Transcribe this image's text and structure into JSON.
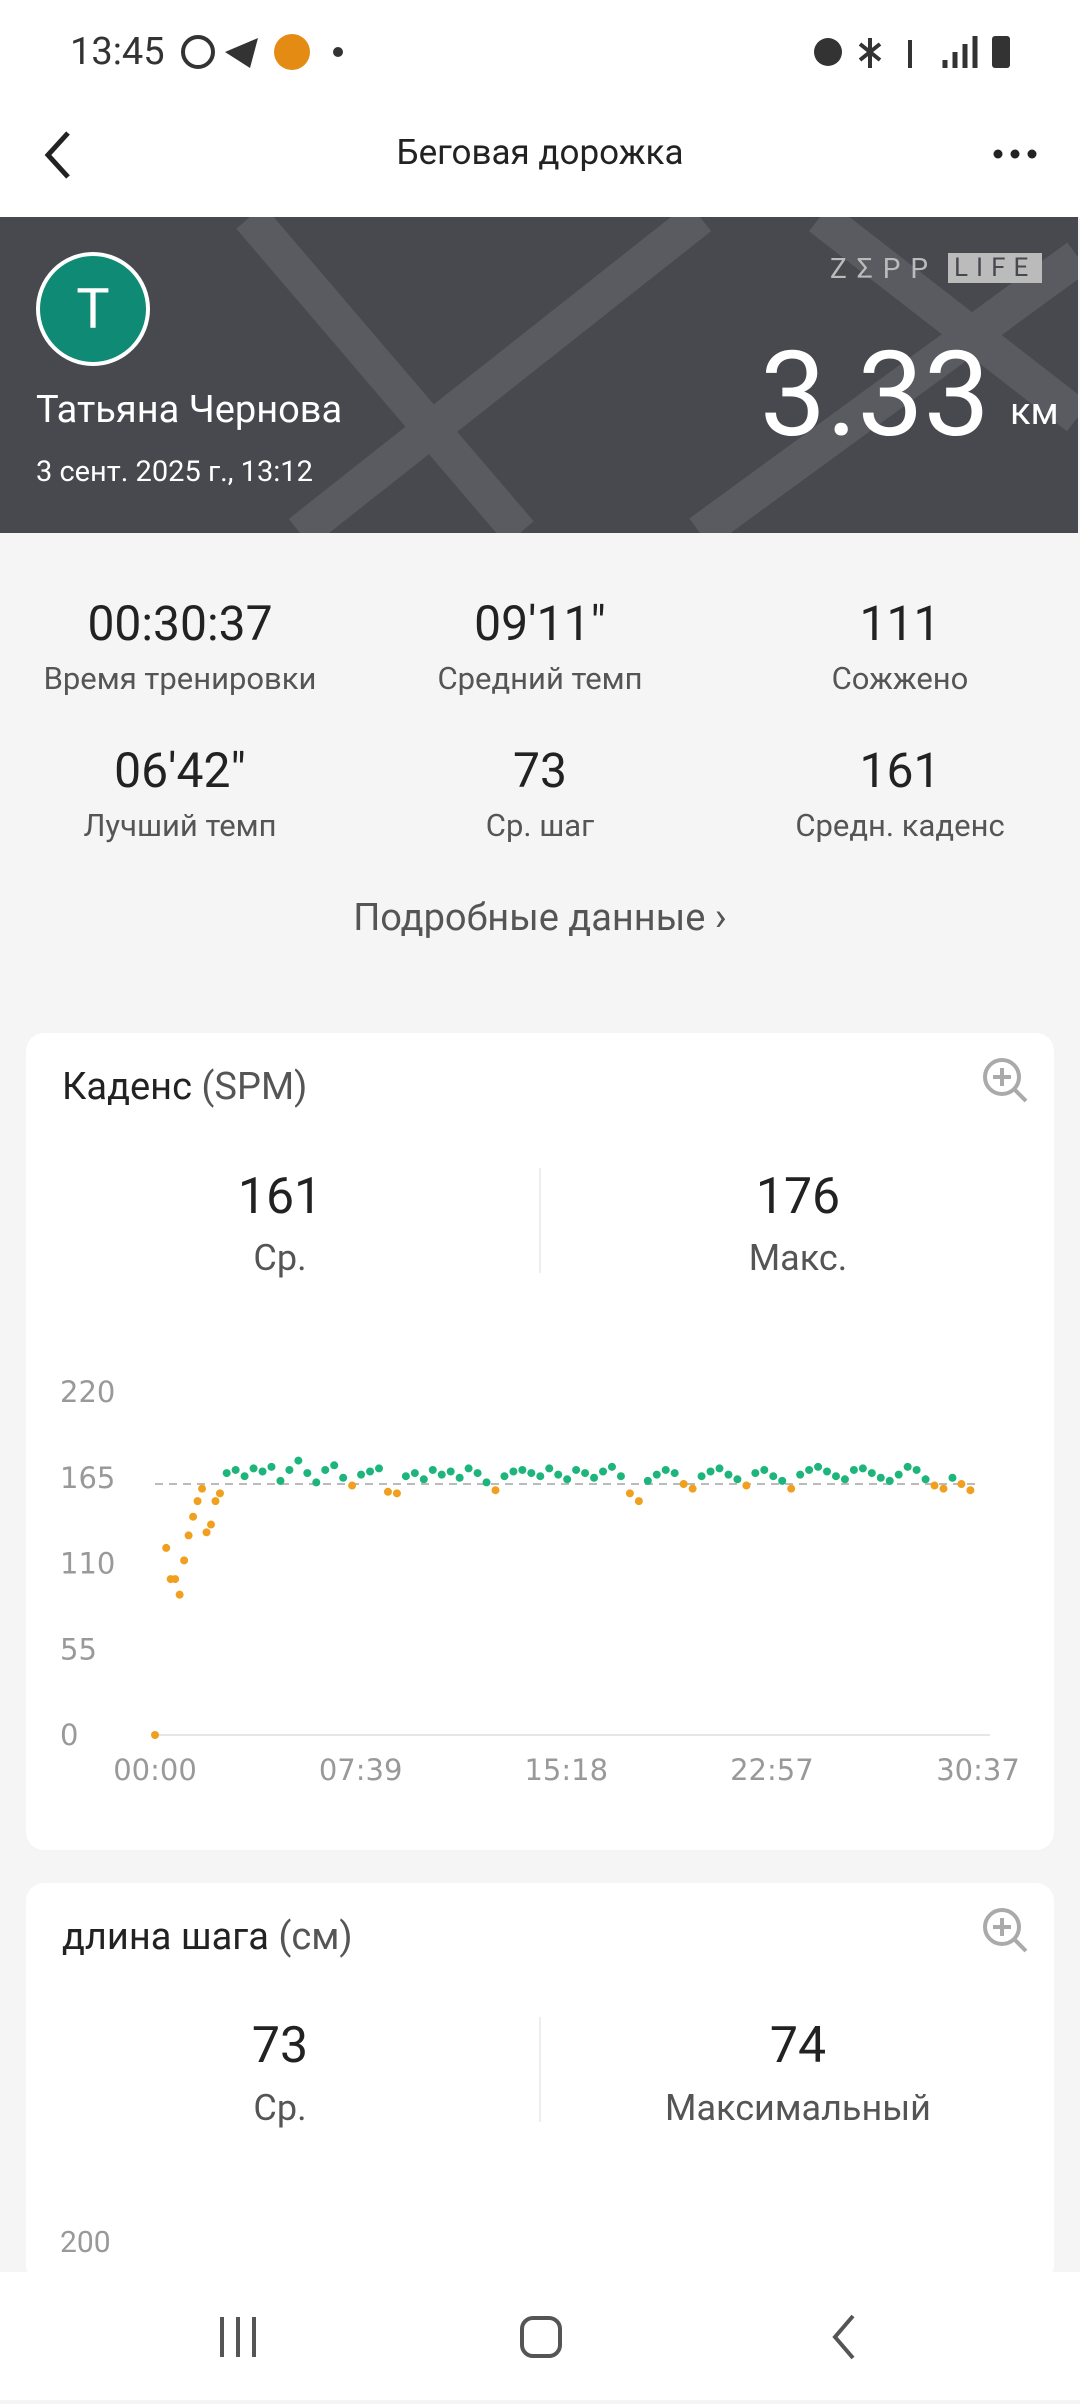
{
  "status_bar": {
    "time": "13:45"
  },
  "header": {
    "title": "Беговая дорожка"
  },
  "profile": {
    "avatar_letter": "T",
    "name": "Татьяна Чернова",
    "date": "3 сент. 2025 г., 13:12",
    "brand": "ZΣPP",
    "brand_badge": "LIFE",
    "distance": "3.33",
    "unit": "км"
  },
  "stats": [
    {
      "value": "00:30:37",
      "label": "Время тренировки"
    },
    {
      "value": "09'11\"",
      "label": "Средний темп"
    },
    {
      "value": "111",
      "label": "Сожжено"
    },
    {
      "value": "06'42\"",
      "label": "Лучший темп"
    },
    {
      "value": "73",
      "label": "Ср. шаг"
    },
    {
      "value": "161",
      "label": "Средн. каденс"
    }
  ],
  "details_link": "Подробные данные",
  "cadence": {
    "title": "Каденс",
    "unit": "(SPM)",
    "avg": {
      "value": 161,
      "label": "Ср."
    },
    "max": {
      "value": 176,
      "label": "Макс."
    },
    "chart": {
      "type": "scatter",
      "color_above": "#1db57b",
      "color_below": "#f0a01e",
      "x": [
        0,
        25,
        35,
        45,
        55,
        65,
        75,
        85,
        95,
        105,
        115,
        125,
        135,
        145,
        160,
        180,
        200,
        220,
        240,
        260,
        280,
        300,
        320,
        340,
        360,
        380,
        400,
        420,
        440,
        460,
        480,
        500,
        520,
        540,
        560,
        580,
        600,
        620,
        640,
        660,
        680,
        700,
        720,
        740,
        760,
        780,
        800,
        820,
        840,
        860,
        880,
        900,
        920,
        940,
        960,
        980,
        1000,
        1020,
        1040,
        1060,
        1080,
        1100,
        1120,
        1140,
        1160,
        1180,
        1200,
        1220,
        1240,
        1260,
        1280,
        1300,
        1320,
        1340,
        1360,
        1380,
        1400,
        1420,
        1440,
        1460,
        1480,
        1500,
        1520,
        1540,
        1560,
        1580,
        1600,
        1620,
        1640,
        1660,
        1680,
        1700,
        1720,
        1740,
        1760,
        1780,
        1800,
        1820
      ],
      "values": [
        0,
        120,
        100,
        100,
        90,
        112,
        128,
        140,
        150,
        158,
        130,
        135,
        150,
        155,
        168,
        170,
        166,
        171,
        169,
        172,
        163,
        170,
        176,
        168,
        162,
        170,
        173,
        165,
        160,
        167,
        169,
        171,
        156,
        155,
        166,
        168,
        164,
        170,
        167,
        169,
        165,
        171,
        168,
        162,
        157,
        166,
        169,
        170,
        168,
        166,
        171,
        167,
        164,
        170,
        168,
        165,
        169,
        172,
        166,
        155,
        150,
        163,
        167,
        170,
        168,
        161,
        158,
        166,
        169,
        171,
        167,
        164,
        160,
        168,
        170,
        166,
        163,
        158,
        167,
        170,
        172,
        169,
        166,
        164,
        170,
        171,
        168,
        165,
        163,
        167,
        172,
        170,
        164,
        160,
        158,
        165,
        161,
        157
      ],
      "xlim": [
        0,
        1837
      ],
      "ylim": [
        0,
        220
      ],
      "yticks": [
        0,
        55,
        110,
        165,
        220
      ],
      "xticks": [
        {
          "value": 0,
          "label": "00:00"
        },
        {
          "value": 459,
          "label": "07:39"
        },
        {
          "value": 918,
          "label": "15:18"
        },
        {
          "value": 1377,
          "label": "22:57"
        },
        {
          "value": 1837,
          "label": "30:37"
        }
      ]
    }
  },
  "stride": {
    "title": "длина шага",
    "unit": "(см)",
    "avg": {
      "value": 73,
      "label": "Ср."
    },
    "max": {
      "value": 74,
      "label": "Максимальный"
    },
    "yticks": [
      200
    ]
  }
}
